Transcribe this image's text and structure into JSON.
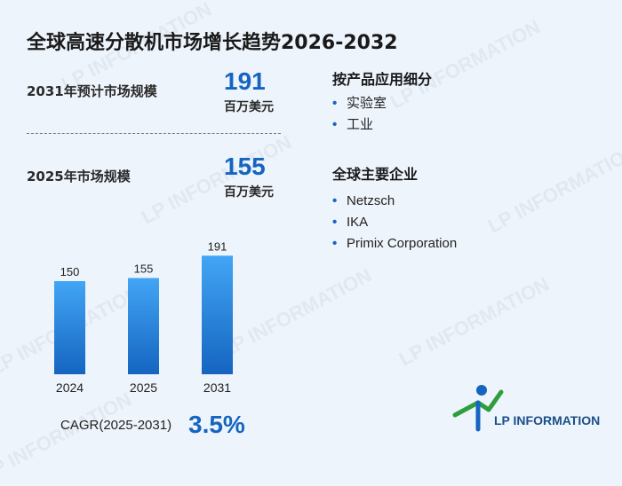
{
  "title": "全球高速分散机市场增长趋势2026-2032",
  "metrics": [
    {
      "label": "2031年预计市场规模",
      "value": "191",
      "unit": "百万美元"
    },
    {
      "label": "2025年市场规模",
      "value": "155",
      "unit": "百万美元"
    }
  ],
  "segments": {
    "title": "按产品应用细分",
    "items": [
      "实验室",
      "工业"
    ]
  },
  "companies": {
    "title": "全球主要企业",
    "items": [
      "Netzsch",
      "IKA",
      "Primix Corporation"
    ]
  },
  "chart_data": {
    "type": "bar",
    "categories": [
      "2024",
      "2025",
      "2031"
    ],
    "values": [
      150,
      155,
      191
    ],
    "title": "",
    "xlabel": "",
    "ylabel": "",
    "ylim": [
      0,
      200
    ]
  },
  "cagr": {
    "label": "CAGR(2025-2031)",
    "value": "3.5%"
  },
  "logo": {
    "text": "LP INFORMATION"
  },
  "watermark_text": "LP INFORMATION",
  "colors": {
    "accent": "#1565c0",
    "bar_top": "#42a5f5",
    "bar_bottom": "#1565c0",
    "logo_green": "#2e9d3e"
  }
}
